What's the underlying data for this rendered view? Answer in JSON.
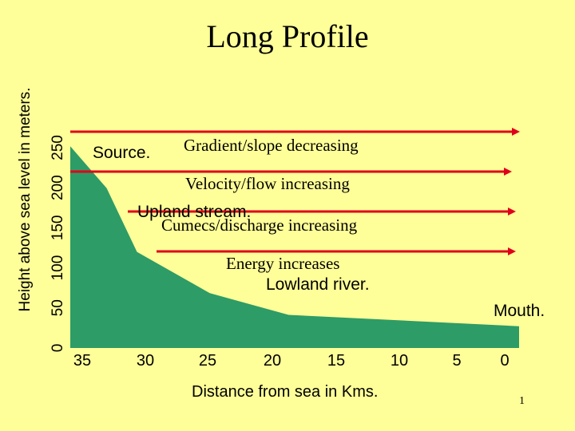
{
  "slide": {
    "title": "Long Profile",
    "page_number": "1"
  },
  "chart_data": {
    "type": "area",
    "title": "Long Profile",
    "xlabel": "Distance from sea in Kms.",
    "ylabel": "Height above sea level in meters.",
    "x_ticks": [
      "35",
      "30",
      "25",
      "20",
      "15",
      "10",
      "5",
      "0"
    ],
    "y_ticks": [
      "0",
      "50",
      "100",
      "150",
      "200",
      "250"
    ],
    "xlim": [
      37,
      0
    ],
    "ylim": [
      0,
      270
    ],
    "x": [
      37,
      34,
      31.5,
      25.5,
      19,
      0
    ],
    "y": [
      250,
      198,
      119,
      68,
      41,
      27
    ],
    "fill_color": "#2e9c66",
    "grid": false,
    "annotations": {
      "source": "Source.",
      "gradient": "Gradient/slope decreasing",
      "velocity": "Velocity/flow increasing",
      "upland": "Upland stream.",
      "cumecs": "Cumecs/discharge increasing",
      "energy": "Energy increases",
      "lowland": "Lowland river.",
      "mouth": "Mouth."
    },
    "arrow_color": "#e0001b"
  }
}
